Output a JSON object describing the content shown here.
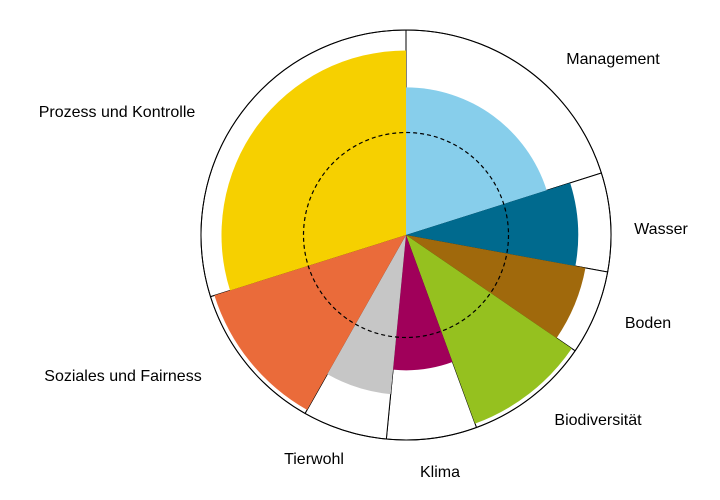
{
  "chart_data": {
    "type": "polar-area",
    "categories": [
      "Management",
      "Wasser",
      "Boden",
      "Biodiversität",
      "Klima",
      "Tierwohl",
      "Soziales und Fairness",
      "Prozess und Kontrolle"
    ],
    "values": [
      72,
      84,
      89,
      98,
      66,
      78,
      98,
      90
    ],
    "widths": [
      72.4,
      28,
      24,
      35.5,
      25.6,
      24,
      43,
      107.5
    ],
    "colors": [
      "#87ceeb",
      "#006a8e",
      "#a0690c",
      "#95c11f",
      "#a0005a",
      "#c6c6c6",
      "#ea6b3a",
      "#f6d000"
    ],
    "rlim": [
      0,
      100
    ]
  }
}
